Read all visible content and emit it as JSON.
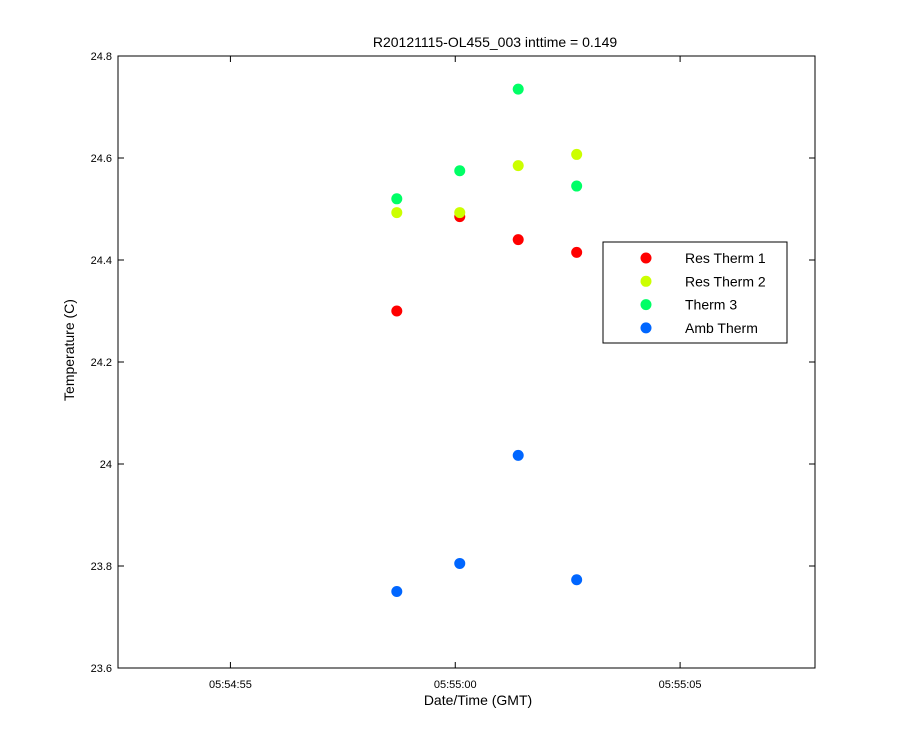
{
  "chart_data": {
    "type": "scatter",
    "title": "R20121115-OL455_003 inttime = 0.149",
    "xlabel": "Date/Time (GMT)",
    "ylabel": "Temperature (C)",
    "x_unit": "time_of_day",
    "xlim": [
      "05:54:52.5",
      "05:55:08.0"
    ],
    "ylim": [
      23.6,
      24.8
    ],
    "x_ticks": [
      "05:54:55",
      "05:55:00",
      "05:55:05"
    ],
    "y_ticks": [
      "23.6",
      "23.8",
      "24",
      "24.2",
      "24.4",
      "24.6",
      "24.8"
    ],
    "grid": false,
    "legend_position": "right",
    "series": [
      {
        "name": "Res Therm 1",
        "color": "#ff0000",
        "points": [
          {
            "x": "05:54:58.7",
            "y": 24.3
          },
          {
            "x": "05:55:00.1",
            "y": 24.485
          },
          {
            "x": "05:55:01.4",
            "y": 24.44
          },
          {
            "x": "05:55:02.7",
            "y": 24.415
          }
        ]
      },
      {
        "name": "Res Therm 2",
        "color": "#ccff00",
        "points": [
          {
            "x": "05:54:58.7",
            "y": 24.493
          },
          {
            "x": "05:55:00.1",
            "y": 24.493
          },
          {
            "x": "05:55:01.4",
            "y": 24.585
          },
          {
            "x": "05:55:02.7",
            "y": 24.607
          }
        ]
      },
      {
        "name": "Therm 3",
        "color": "#00ff66",
        "points": [
          {
            "x": "05:54:58.7",
            "y": 24.52
          },
          {
            "x": "05:55:00.1",
            "y": 24.575
          },
          {
            "x": "05:55:01.4",
            "y": 24.735
          },
          {
            "x": "05:55:02.7",
            "y": 24.545
          }
        ]
      },
      {
        "name": "Amb Therm",
        "color": "#0066ff",
        "points": [
          {
            "x": "05:54:58.7",
            "y": 23.75
          },
          {
            "x": "05:55:00.1",
            "y": 23.805
          },
          {
            "x": "05:55:01.4",
            "y": 24.017
          },
          {
            "x": "05:55:02.7",
            "y": 23.773
          }
        ]
      }
    ]
  }
}
